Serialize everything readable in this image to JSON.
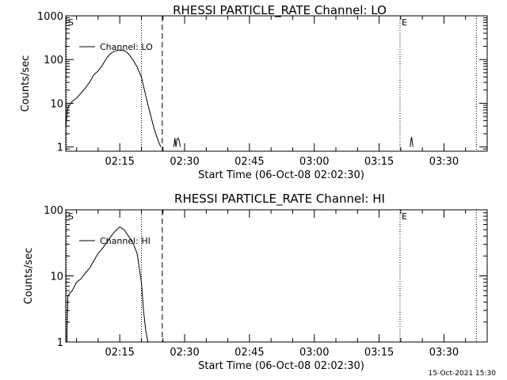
{
  "footer_timestamp": "15-Oct-2021 15:30",
  "chart_data": [
    {
      "type": "line",
      "title": "RHESSI PARTICLE_RATE Channel: LO",
      "xlabel": "Start Time (06-Oct-08 02:02:30)",
      "ylabel": "Counts/sec",
      "yscale": "log",
      "xlim": [
        "02:02:30",
        "03:40:00"
      ],
      "ylim": [
        0.8,
        1000
      ],
      "x_ticks": [
        "02:15",
        "02:30",
        "02:45",
        "03:00",
        "03:15",
        "03:30"
      ],
      "y_ticks": [
        "1",
        "10",
        "100",
        "1000"
      ],
      "legend": {
        "position": "top-left"
      },
      "markers": [
        {
          "label": "S",
          "time": "02:02:40",
          "style": "dotted"
        },
        {
          "label": "",
          "time": "02:20:00",
          "style": "dotted"
        },
        {
          "label": "",
          "time": "02:24:50",
          "style": "dashed"
        },
        {
          "label": "E",
          "time": "03:19:50",
          "style": "dotted"
        },
        {
          "label": "",
          "time": "03:37:30",
          "style": "dotted"
        }
      ],
      "series": [
        {
          "name": "Channel: LO",
          "segments": [
            {
              "x": [
                "02:02:30",
                "02:03:00",
                "02:04:00",
                "02:05:00",
                "02:06:00",
                "02:07:00",
                "02:07:30",
                "02:08:00",
                "02:09:00",
                "02:10:00",
                "02:11:00",
                "02:12:00",
                "02:13:00",
                "02:14:00",
                "02:15:00",
                "02:16:00",
                "02:16:30",
                "02:17:00",
                "02:18:00",
                "02:19:00",
                "02:20:00",
                "02:21:00",
                "02:22:00",
                "02:23:00",
                "02:24:00",
                "02:24:30"
              ],
              "y": [
                3,
                8,
                11,
                13,
                17,
                22,
                26,
                30,
                45,
                55,
                75,
                110,
                140,
                158,
                165,
                160,
                150,
                135,
                100,
                68,
                40,
                15,
                6,
                2.5,
                1.3,
                1
              ]
            },
            {
              "x": [
                "02:27:30",
                "02:27:45",
                "02:28:00",
                "02:28:15",
                "02:28:30",
                "02:28:45",
                "02:29:00"
              ],
              "y": [
                1,
                1.6,
                1,
                1.5,
                1.6,
                1.4,
                1
              ]
            },
            {
              "x": [
                "03:22:10",
                "03:22:30",
                "03:22:50"
              ],
              "y": [
                1,
                1.7,
                1
              ]
            }
          ]
        }
      ]
    },
    {
      "type": "line",
      "title": "RHESSI PARTICLE_RATE Channel: HI",
      "xlabel": "Start Time (06-Oct-08 02:02:30)",
      "ylabel": "Counts/sec",
      "yscale": "log",
      "xlim": [
        "02:02:30",
        "03:40:00"
      ],
      "ylim": [
        1,
        100
      ],
      "x_ticks": [
        "02:15",
        "02:30",
        "02:45",
        "03:00",
        "03:15",
        "03:30"
      ],
      "y_ticks": [
        "1",
        "10",
        "100"
      ],
      "legend": {
        "position": "top-left"
      },
      "markers": [
        {
          "label": "S",
          "time": "02:02:40",
          "style": "dotted"
        },
        {
          "label": "",
          "time": "02:20:00",
          "style": "dotted"
        },
        {
          "label": "",
          "time": "02:24:50",
          "style": "dashed"
        },
        {
          "label": "E",
          "time": "03:19:50",
          "style": "dotted"
        },
        {
          "label": "",
          "time": "03:37:30",
          "style": "dotted"
        }
      ],
      "series": [
        {
          "name": "Channel: HI",
          "segments": [
            {
              "x": [
                "02:02:45",
                "02:03:00",
                "02:04:00",
                "02:05:00",
                "02:06:00",
                "02:07:00",
                "02:08:00",
                "02:09:00",
                "02:10:00",
                "02:11:00",
                "02:12:00",
                "02:13:00",
                "02:14:00",
                "02:15:00",
                "02:16:00",
                "02:17:00",
                "02:18:00",
                "02:19:00",
                "02:20:00",
                "02:20:30",
                "02:21:00",
                "02:21:30"
              ],
              "y": [
                1,
                5,
                6,
                8,
                9,
                11,
                13,
                17,
                22,
                26,
                32,
                40,
                48,
                55,
                50,
                40,
                32,
                22,
                8,
                3,
                1.5,
                1
              ]
            }
          ]
        }
      ]
    }
  ]
}
